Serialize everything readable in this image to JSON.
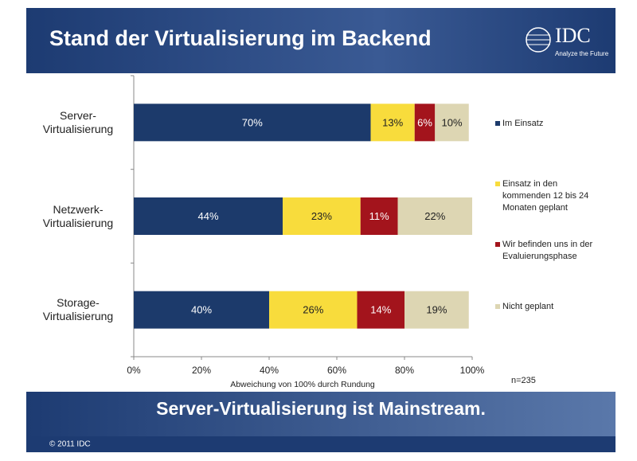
{
  "chart_data": {
    "type": "bar",
    "orientation": "horizontal",
    "stacked": true,
    "title": "Stand der Virtualisierung im Backend",
    "categories": [
      "Server-Virtualisierung",
      "Netzwerk-Virtualisierung",
      "Storage-Virtualisierung"
    ],
    "series": [
      {
        "name": "Im Einsatz",
        "color": "#1c3a6b",
        "label_color": "#ffffff",
        "values": [
          70,
          44,
          40
        ],
        "value_labels": [
          "70%",
          "44%",
          "40%"
        ]
      },
      {
        "name": "Einsatz in den kommenden 12 bis 24 Monaten geplant",
        "color": "#f8dc3c",
        "label_color": "#222222",
        "values": [
          13,
          23,
          26
        ],
        "value_labels": [
          "13%",
          "23%",
          "26%"
        ]
      },
      {
        "name": "Wir befinden uns in der Evaluierungsphase",
        "color": "#a3141c",
        "label_color": "#ffffff",
        "values": [
          6,
          11,
          14
        ],
        "value_labels": [
          "6%",
          "11%",
          "14%"
        ]
      },
      {
        "name": "Nicht geplant",
        "color": "#ddd6b3",
        "label_color": "#222222",
        "values": [
          10,
          22,
          19
        ],
        "value_labels": [
          "10%",
          "22%",
          "19%"
        ]
      }
    ],
    "xlim": [
      0,
      100
    ],
    "xticks": [
      {
        "value": 0,
        "label": "0%"
      },
      {
        "value": 20,
        "label": "20%"
      },
      {
        "value": 40,
        "label": "40%"
      },
      {
        "value": 60,
        "label": "60%"
      },
      {
        "value": 80,
        "label": "80%"
      },
      {
        "value": 100,
        "label": "100%"
      }
    ],
    "note": "Abweichung von 100% durch Rundung",
    "sample": "n=235"
  },
  "slide": {
    "logo": "IDC",
    "tagline": "Analyze the Future",
    "banner": "Server-Virtualisierung ist Mainstream.",
    "footer": "© 2011 IDC"
  }
}
